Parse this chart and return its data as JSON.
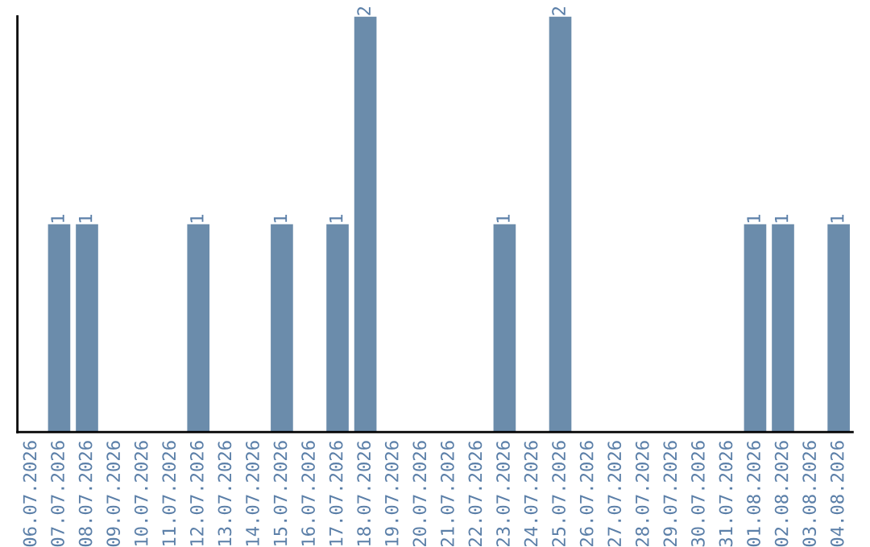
{
  "chart_data": {
    "type": "bar",
    "categories": [
      "06.07.2026",
      "07.07.2026",
      "08.07.2026",
      "09.07.2026",
      "10.07.2026",
      "11.07.2026",
      "12.07.2026",
      "13.07.2026",
      "14.07.2026",
      "15.07.2026",
      "16.07.2026",
      "17.07.2026",
      "18.07.2026",
      "19.07.2026",
      "20.07.2026",
      "21.07.2026",
      "22.07.2026",
      "23.07.2026",
      "24.07.2026",
      "25.07.2026",
      "26.07.2026",
      "27.07.2026",
      "28.07.2026",
      "29.07.2026",
      "30.07.2026",
      "31.07.2026",
      "01.08.2026",
      "02.08.2026",
      "03.08.2026",
      "04.08.2026"
    ],
    "values": [
      0,
      1,
      1,
      0,
      0,
      0,
      1,
      0,
      0,
      1,
      0,
      1,
      2,
      0,
      0,
      0,
      0,
      1,
      0,
      2,
      0,
      0,
      0,
      0,
      0,
      0,
      1,
      1,
      0,
      1
    ],
    "value_labels": [
      null,
      "1",
      "1",
      null,
      null,
      null,
      "1",
      null,
      null,
      "1",
      null,
      "1",
      "2",
      null,
      null,
      null,
      null,
      "1",
      null,
      "2",
      null,
      null,
      null,
      null,
      null,
      null,
      "1",
      "1",
      null,
      "1"
    ],
    "color": "#6b8cab",
    "ylim": [
      0,
      2
    ],
    "tick_labels": "x",
    "grid": false,
    "legend": false
  }
}
